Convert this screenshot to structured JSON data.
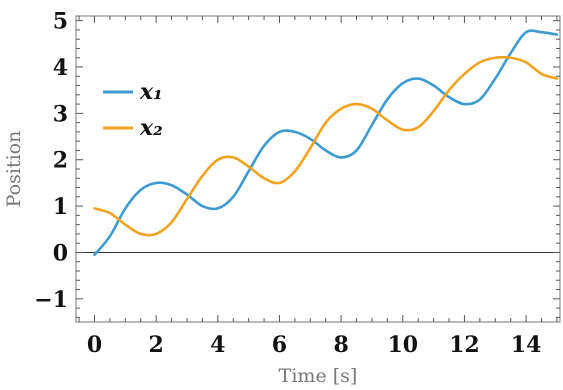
{
  "chart_data": {
    "type": "line",
    "xlabel": "Time [s]",
    "ylabel": "Position",
    "xlim": [
      -0.6,
      15.1
    ],
    "ylim": [
      -1.5,
      5.1
    ],
    "xticks": [
      0,
      2,
      4,
      6,
      8,
      10,
      12,
      14
    ],
    "xtick_labels": [
      "0",
      "2",
      "4",
      "6",
      "8",
      "10",
      "12",
      "14"
    ],
    "yticks": [
      -1,
      0,
      1,
      2,
      3,
      4,
      5
    ],
    "ytick_labels": [
      "−1",
      "0",
      "1",
      "2",
      "3",
      "4",
      "5"
    ],
    "grid": false,
    "legend_position": "upper-left",
    "series": [
      {
        "name": "x₁",
        "color": "#3D9BD1",
        "x": [
          0,
          0.5,
          1,
          1.5,
          2,
          2.5,
          3,
          3.5,
          4,
          4.5,
          5,
          5.5,
          6,
          6.5,
          7,
          7.5,
          8,
          8.5,
          9,
          9.5,
          10,
          10.5,
          11,
          11.5,
          12,
          12.5,
          13,
          13.5,
          14,
          14.5,
          15
        ],
        "values": [
          -0.05,
          0.35,
          0.95,
          1.35,
          1.5,
          1.45,
          1.25,
          1.0,
          0.95,
          1.2,
          1.75,
          2.3,
          2.6,
          2.6,
          2.45,
          2.2,
          2.05,
          2.2,
          2.75,
          3.3,
          3.65,
          3.75,
          3.6,
          3.35,
          3.2,
          3.3,
          3.75,
          4.3,
          4.75,
          4.75,
          4.7
        ]
      },
      {
        "name": "x₂",
        "color": "#F2A21E",
        "x": [
          0,
          0.5,
          1,
          1.5,
          2,
          2.5,
          3,
          3.5,
          4,
          4.5,
          5,
          5.5,
          6,
          6.5,
          7,
          7.5,
          8,
          8.5,
          9,
          9.5,
          10,
          10.5,
          11,
          11.5,
          12,
          12.5,
          13,
          13.5,
          14,
          14.5,
          15
        ],
        "values": [
          0.95,
          0.85,
          0.6,
          0.4,
          0.4,
          0.65,
          1.15,
          1.65,
          2.0,
          2.05,
          1.85,
          1.6,
          1.5,
          1.75,
          2.25,
          2.8,
          3.1,
          3.2,
          3.1,
          2.85,
          2.65,
          2.7,
          3.05,
          3.5,
          3.85,
          4.1,
          4.2,
          4.2,
          4.1,
          3.85,
          3.75
        ]
      }
    ]
  }
}
